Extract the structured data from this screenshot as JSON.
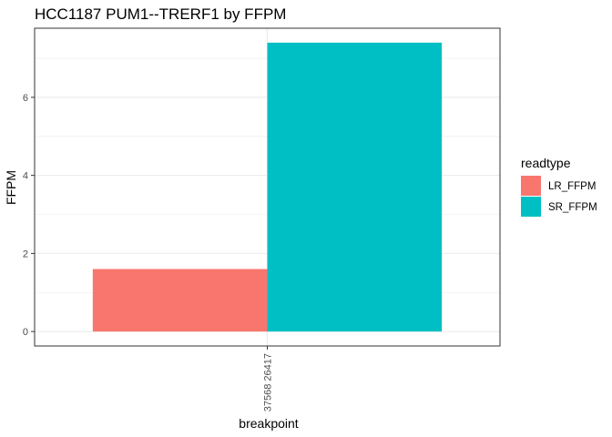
{
  "chart_data": {
    "type": "bar",
    "title": "HCC1187 PUM1--TRERF1 by FFPM",
    "xlabel": "breakpoint",
    "ylabel": "FFPM",
    "categories": [
      "37568 26417"
    ],
    "series": [
      {
        "name": "LR_FFPM",
        "color": "#F8766D",
        "values": [
          1.6
        ]
      },
      {
        "name": "SR_FFPM",
        "color": "#00BFC4",
        "values": [
          7.4
        ]
      }
    ],
    "ylim": [
      -0.37,
      7.77
    ],
    "yticks": [
      0,
      2,
      4,
      6
    ],
    "grid": true,
    "legend": {
      "title": "readtype",
      "position": "right"
    }
  }
}
